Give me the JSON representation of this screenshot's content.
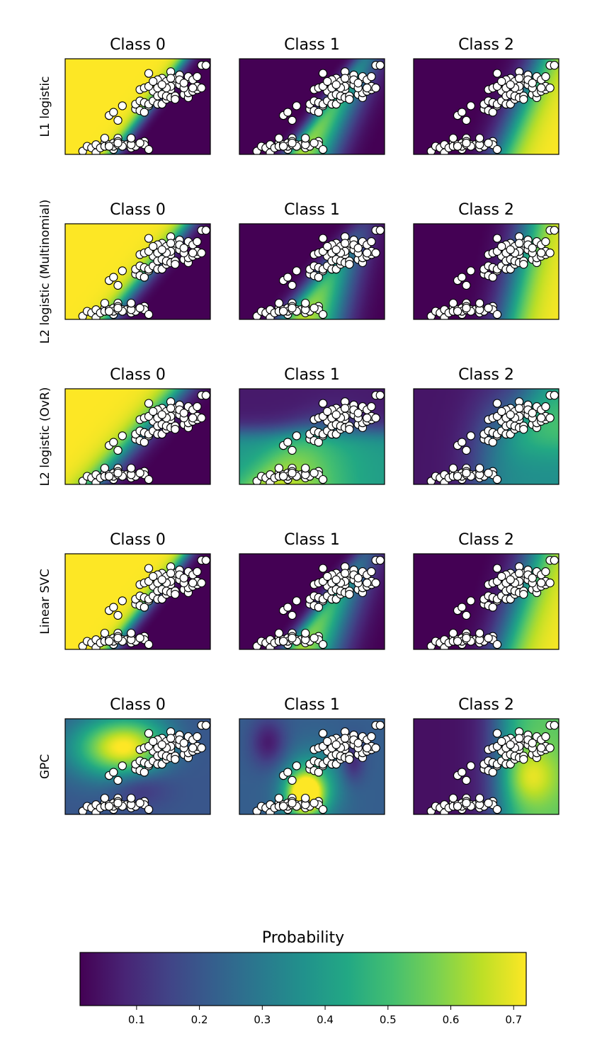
{
  "chart_data": {
    "type": "heatmap",
    "column_titles": [
      "Class 0",
      "Class 1",
      "Class 2"
    ],
    "row_labels": [
      "L1 logistic",
      "L2 logistic (Multinomial)",
      "L2 logistic (OvR)",
      "Linear SVC",
      "GPC"
    ],
    "colormap": "viridis",
    "colorbar": {
      "label": "Probability",
      "range": [
        0.01,
        0.72
      ],
      "ticks": [
        0.1,
        0.2,
        0.3,
        0.4,
        0.5,
        0.6,
        0.7
      ],
      "tick_labels": [
        "0.1",
        "0.2",
        "0.3",
        "0.4",
        "0.5",
        "0.6",
        "0.7"
      ]
    },
    "x_range": [
      3.9,
      7.2
    ],
    "y_range": [
      0.9,
      6.8
    ],
    "points": {
      "class0": [
        [
          4.3,
          1.1
        ],
        [
          4.4,
          1.4
        ],
        [
          4.5,
          1.3
        ],
        [
          4.6,
          1.0
        ],
        [
          4.6,
          1.5
        ],
        [
          4.7,
          1.3
        ],
        [
          4.8,
          1.6
        ],
        [
          4.8,
          1.4
        ],
        [
          4.9,
          1.5
        ],
        [
          5.0,
          1.2
        ],
        [
          5.0,
          1.6
        ],
        [
          5.0,
          1.4
        ],
        [
          5.1,
          1.5
        ],
        [
          5.1,
          1.9
        ],
        [
          5.1,
          1.7
        ],
        [
          5.2,
          1.5
        ],
        [
          5.3,
          1.5
        ],
        [
          5.4,
          1.7
        ],
        [
          5.4,
          1.3
        ],
        [
          5.5,
          1.4
        ],
        [
          5.7,
          1.7
        ],
        [
          5.7,
          1.5
        ],
        [
          5.8,
          1.2
        ],
        [
          4.8,
          1.9
        ],
        [
          5.2,
          1.4
        ],
        [
          5.4,
          1.5
        ],
        [
          4.9,
          1.4
        ],
        [
          5.1,
          1.6
        ],
        [
          5.4,
          1.9
        ],
        [
          5.6,
          1.6
        ]
      ],
      "class1": [
        [
          4.9,
          3.3
        ],
        [
          5.0,
          3.5
        ],
        [
          5.1,
          3.0
        ],
        [
          5.2,
          3.9
        ],
        [
          5.5,
          3.7
        ],
        [
          5.5,
          4.0
        ],
        [
          5.6,
          3.6
        ],
        [
          5.6,
          4.2
        ],
        [
          5.7,
          3.5
        ],
        [
          5.7,
          4.1
        ],
        [
          5.8,
          3.9
        ],
        [
          5.8,
          4.0
        ],
        [
          5.9,
          4.2
        ],
        [
          5.9,
          4.8
        ],
        [
          6.0,
          4.5
        ],
        [
          6.0,
          4.0
        ],
        [
          6.0,
          5.1
        ],
        [
          6.1,
          4.6
        ],
        [
          6.1,
          4.0
        ],
        [
          6.2,
          4.3
        ],
        [
          6.2,
          4.5
        ],
        [
          6.3,
          4.9
        ],
        [
          6.3,
          4.4
        ],
        [
          6.4,
          4.5
        ],
        [
          6.4,
          4.3
        ],
        [
          6.6,
          4.6
        ],
        [
          6.7,
          4.4
        ],
        [
          6.7,
          4.7
        ],
        [
          6.8,
          4.8
        ],
        [
          6.9,
          4.9
        ]
      ],
      "class2": [
        [
          5.6,
          4.9
        ],
        [
          5.7,
          5.0
        ],
        [
          5.8,
          5.1
        ],
        [
          5.8,
          5.9
        ],
        [
          6.0,
          5.0
        ],
        [
          6.1,
          5.6
        ],
        [
          6.2,
          5.4
        ],
        [
          6.3,
          6.0
        ],
        [
          6.4,
          5.3
        ],
        [
          6.4,
          5.6
        ],
        [
          6.5,
          5.2
        ],
        [
          6.5,
          5.8
        ],
        [
          6.7,
          5.6
        ],
        [
          6.7,
          5.7
        ],
        [
          6.8,
          5.5
        ],
        [
          6.9,
          5.7
        ],
        [
          7.0,
          6.4
        ],
        [
          7.1,
          6.4
        ],
        [
          6.3,
          5.1
        ],
        [
          6.2,
          5.0
        ],
        [
          6.0,
          5.5
        ],
        [
          5.9,
          5.4
        ],
        [
          6.5,
          5.5
        ],
        [
          6.9,
          5.1
        ],
        [
          6.3,
          5.6
        ],
        [
          7.0,
          5.0
        ],
        [
          6.6,
          5.0
        ],
        [
          6.1,
          5.2
        ],
        [
          6.8,
          5.0
        ],
        [
          6.6,
          5.3
        ]
      ]
    }
  }
}
